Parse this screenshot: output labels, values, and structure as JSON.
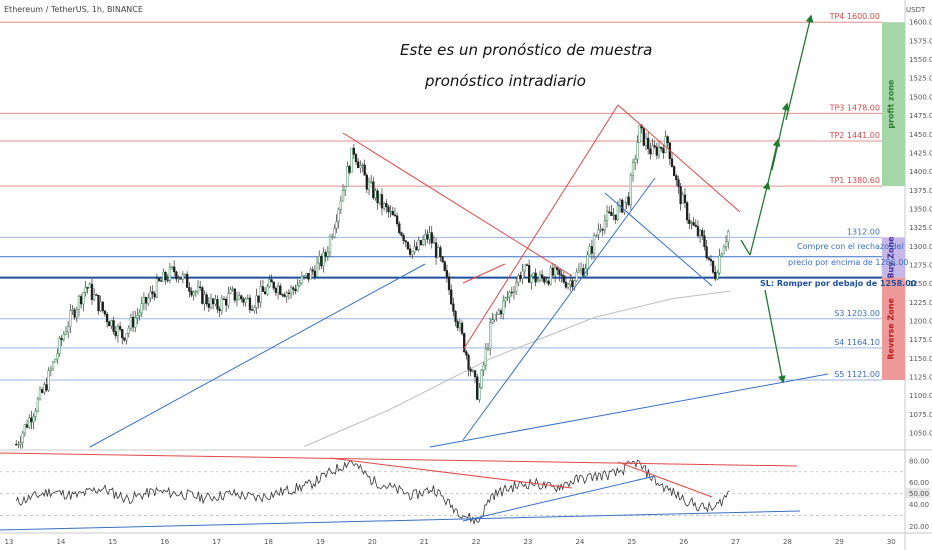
{
  "symbol": "Ethereum / TetherUS, 1h, BINANCE",
  "currency": "USDT",
  "annotations": {
    "line1": "Este es un pronóstico de muestra",
    "line2": "pronóstico intradiario",
    "buy_note_1": "Compre con el rechazo del",
    "buy_note_2": "precio por encima de 1286.00",
    "sl_note": "SL: Romper por debajo de 1258.00"
  },
  "levels": [
    {
      "label": "TP4 1600.00",
      "price": 1600,
      "color": "#e88c8c",
      "text_color": "#d84a4a"
    },
    {
      "label": "TP3 1478.00",
      "price": 1478,
      "color": "#e88c8c",
      "text_color": "#d84a4a"
    },
    {
      "label": "TP2 1441.00",
      "price": 1441,
      "color": "#e88c8c",
      "text_color": "#d84a4a"
    },
    {
      "label": "TP1 1380.60",
      "price": 1380.6,
      "color": "#e88c8c",
      "text_color": "#d84a4a"
    },
    {
      "label": "1312.00",
      "price": 1312,
      "color": "#9bb6e6",
      "text_color": "#3a6fc4"
    },
    {
      "label": "",
      "price": 1286,
      "color": "#3a6fc4",
      "text_color": "#3a6fc4"
    },
    {
      "label": "",
      "price": 1258,
      "color": "#1d4f9e",
      "text_color": "#1d4f9e"
    },
    {
      "label": "S3 1203.00",
      "price": 1203,
      "color": "#9bb6e6",
      "text_color": "#3a6fc4"
    },
    {
      "label": "S4 1164.10",
      "price": 1164.1,
      "color": "#9bb6e6",
      "text_color": "#3a6fc4"
    },
    {
      "label": "S5 1121.00",
      "price": 1121,
      "color": "#9bb6e6",
      "text_color": "#3a6fc4"
    }
  ],
  "zones": [
    {
      "label": "profit zone",
      "from": 1380.6,
      "to": 1600,
      "color": "#a5d6a7",
      "text_color": "#2e7d32"
    },
    {
      "label": "Buy Zone",
      "from": 1258,
      "to": 1312,
      "color": "#c5b8e8",
      "text_color": "#3b2f8f"
    },
    {
      "label": "Reverse Zone",
      "from": 1121,
      "to": 1258,
      "color": "#ef9a9a",
      "text_color": "#b71c1c"
    }
  ],
  "price_axis_ticks": [
    "1600.00",
    "1575.00",
    "1550.00",
    "1525.00",
    "1500.00",
    "1475.00",
    "1450.00",
    "1425.00",
    "1400.00",
    "1375.00",
    "1350.00",
    "1325.00",
    "1300.00",
    "1275.00",
    "1250.00",
    "1225.00",
    "1200.00",
    "1175.00",
    "1150.00",
    "1125.00",
    "1100.00",
    "1075.00",
    "1050.00"
  ],
  "rsi_axis_ticks": [
    "80.00",
    "60.00",
    "50.00",
    "40.00",
    "20.00"
  ],
  "date_ticks": [
    "13",
    "14",
    "15",
    "16",
    "17",
    "18",
    "19",
    "20",
    "21",
    "22",
    "23",
    "24",
    "25",
    "26",
    "27",
    "28",
    "29",
    "30"
  ],
  "chart_data": {
    "type": "candlestick",
    "ylim": [
      1030,
      1615
    ],
    "x_unit": "day of month",
    "anchors": [
      {
        "x": 12.85,
        "y": 1035
      },
      {
        "x": 13.4,
        "y": 1110
      },
      {
        "x": 13.8,
        "y": 1190
      },
      {
        "x": 14.2,
        "y": 1248
      },
      {
        "x": 14.6,
        "y": 1205
      },
      {
        "x": 14.9,
        "y": 1180
      },
      {
        "x": 15.2,
        "y": 1210
      },
      {
        "x": 15.6,
        "y": 1250
      },
      {
        "x": 15.9,
        "y": 1268
      },
      {
        "x": 16.3,
        "y": 1240
      },
      {
        "x": 16.7,
        "y": 1218
      },
      {
        "x": 17.0,
        "y": 1235
      },
      {
        "x": 17.4,
        "y": 1225
      },
      {
        "x": 17.8,
        "y": 1250
      },
      {
        "x": 18.1,
        "y": 1238
      },
      {
        "x": 18.5,
        "y": 1262
      },
      {
        "x": 18.8,
        "y": 1285
      },
      {
        "x": 19.1,
        "y": 1365
      },
      {
        "x": 19.35,
        "y": 1430
      },
      {
        "x": 19.6,
        "y": 1385
      },
      {
        "x": 19.9,
        "y": 1355
      },
      {
        "x": 20.2,
        "y": 1330
      },
      {
        "x": 20.5,
        "y": 1290
      },
      {
        "x": 20.8,
        "y": 1315
      },
      {
        "x": 21.0,
        "y": 1285
      },
      {
        "x": 21.2,
        "y": 1240
      },
      {
        "x": 21.45,
        "y": 1175
      },
      {
        "x": 21.75,
        "y": 1100
      },
      {
        "x": 22.0,
        "y": 1195
      },
      {
        "x": 22.3,
        "y": 1230
      },
      {
        "x": 22.6,
        "y": 1268
      },
      {
        "x": 22.9,
        "y": 1255
      },
      {
        "x": 23.2,
        "y": 1262
      },
      {
        "x": 23.5,
        "y": 1252
      },
      {
        "x": 23.8,
        "y": 1272
      },
      {
        "x": 24.1,
        "y": 1330
      },
      {
        "x": 24.4,
        "y": 1345
      },
      {
        "x": 24.65,
        "y": 1365
      },
      {
        "x": 24.85,
        "y": 1455
      },
      {
        "x": 25.1,
        "y": 1425
      },
      {
        "x": 25.4,
        "y": 1440
      },
      {
        "x": 25.6,
        "y": 1375
      },
      {
        "x": 25.85,
        "y": 1330
      },
      {
        "x": 26.1,
        "y": 1305
      },
      {
        "x": 26.3,
        "y": 1258
      },
      {
        "x": 26.45,
        "y": 1300
      },
      {
        "x": 26.6,
        "y": 1325
      }
    ],
    "rsi_ylim": [
      15,
      88
    ],
    "rsi_levels": [
      70,
      50,
      30
    ],
    "rsi_anchors": [
      {
        "x": 12.85,
        "y": 42
      },
      {
        "x": 13.5,
        "y": 52
      },
      {
        "x": 14.0,
        "y": 48
      },
      {
        "x": 14.5,
        "y": 55
      },
      {
        "x": 15.0,
        "y": 45
      },
      {
        "x": 15.5,
        "y": 52
      },
      {
        "x": 16.0,
        "y": 50
      },
      {
        "x": 16.5,
        "y": 46
      },
      {
        "x": 17.0,
        "y": 50
      },
      {
        "x": 17.5,
        "y": 46
      },
      {
        "x": 18.0,
        "y": 52
      },
      {
        "x": 18.5,
        "y": 58
      },
      {
        "x": 19.0,
        "y": 72
      },
      {
        "x": 19.3,
        "y": 80
      },
      {
        "x": 19.7,
        "y": 62
      },
      {
        "x": 20.1,
        "y": 55
      },
      {
        "x": 20.5,
        "y": 48
      },
      {
        "x": 20.9,
        "y": 55
      },
      {
        "x": 21.2,
        "y": 40
      },
      {
        "x": 21.5,
        "y": 30
      },
      {
        "x": 21.75,
        "y": 24
      },
      {
        "x": 22.0,
        "y": 48
      },
      {
        "x": 22.4,
        "y": 56
      },
      {
        "x": 22.8,
        "y": 60
      },
      {
        "x": 23.2,
        "y": 55
      },
      {
        "x": 23.6,
        "y": 62
      },
      {
        "x": 24.0,
        "y": 66
      },
      {
        "x": 24.4,
        "y": 68
      },
      {
        "x": 24.8,
        "y": 79
      },
      {
        "x": 25.2,
        "y": 60
      },
      {
        "x": 25.6,
        "y": 48
      },
      {
        "x": 26.0,
        "y": 38
      },
      {
        "x": 26.3,
        "y": 36
      },
      {
        "x": 26.6,
        "y": 52
      }
    ],
    "ma_anchors": [
      {
        "x": 18.4,
        "y": 1032
      },
      {
        "x": 20.0,
        "y": 1080
      },
      {
        "x": 22.0,
        "y": 1150
      },
      {
        "x": 24.0,
        "y": 1205
      },
      {
        "x": 25.5,
        "y": 1230
      },
      {
        "x": 26.6,
        "y": 1240
      }
    ]
  }
}
